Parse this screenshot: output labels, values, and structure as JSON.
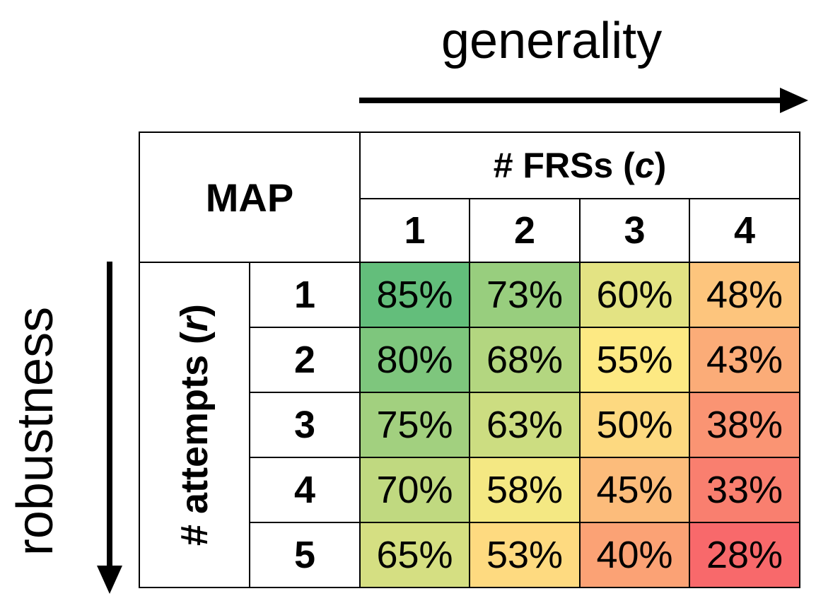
{
  "axes": {
    "generality": "generality",
    "robustness": "robustness"
  },
  "table": {
    "title": "MAP",
    "col_group": {
      "prefix": "# FRSs (",
      "var": "c",
      "suffix": ")"
    },
    "row_group": {
      "prefix": "# attempts (",
      "var": "r",
      "suffix": ")"
    }
  },
  "chart_data": {
    "type": "heatmap",
    "title": "MAP",
    "xlabel": "# FRSs (c)",
    "ylabel": "# attempts (r)",
    "x": [
      "1",
      "2",
      "3",
      "4"
    ],
    "y": [
      "1",
      "2",
      "3",
      "4",
      "5"
    ],
    "values": [
      [
        85,
        73,
        60,
        48
      ],
      [
        80,
        68,
        55,
        43
      ],
      [
        75,
        63,
        50,
        38
      ],
      [
        70,
        58,
        45,
        33
      ],
      [
        65,
        53,
        40,
        28
      ]
    ],
    "value_format": "percent",
    "colors": [
      [
        "#63be7b",
        "#98ce7e",
        "#e3e383",
        "#fdc57d"
      ],
      [
        "#7ec67d",
        "#b3d680",
        "#fde983",
        "#fbac78"
      ],
      [
        "#a2d07f",
        "#ccdd81",
        "#fdd980",
        "#fa9473"
      ],
      [
        "#c0d980",
        "#f4e883",
        "#fcbc7b",
        "#f97f6f"
      ],
      [
        "#d5df82",
        "#feda80",
        "#fba275",
        "#f8696b"
      ]
    ]
  }
}
